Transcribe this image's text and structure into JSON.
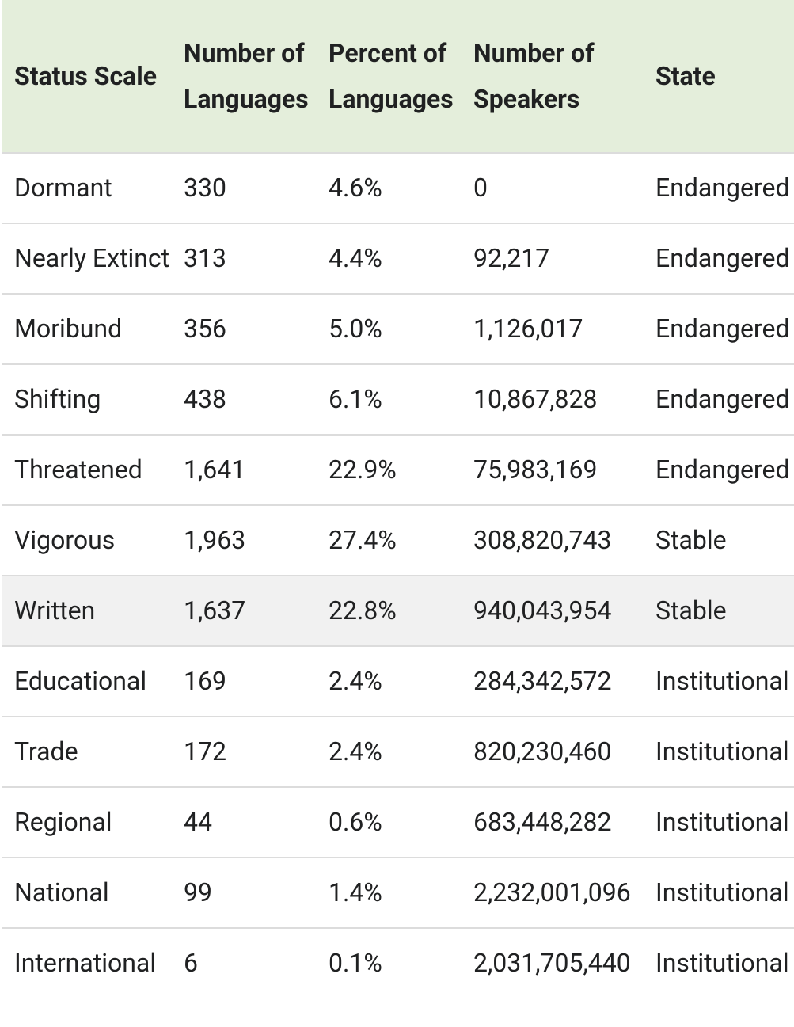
{
  "table": {
    "header": [
      "Status Scale",
      "Number of Languages",
      "Percent of Languages",
      "Number of Speakers",
      "State"
    ],
    "rows": [
      [
        "Dormant",
        "330",
        "4.6%",
        "0",
        "Endangered"
      ],
      [
        "Nearly Extinct",
        "313",
        "4.4%",
        "92,217",
        "Endangered"
      ],
      [
        "Moribund",
        "356",
        "5.0%",
        "1,126,017",
        "Endangered"
      ],
      [
        "Shifting",
        "438",
        "6.1%",
        "10,867,828",
        "Endangered"
      ],
      [
        "Threatened",
        "1,641",
        "22.9%",
        "75,983,169",
        "Endangered"
      ],
      [
        "Vigorous",
        "1,963",
        "27.4%",
        "308,820,743",
        "Stable"
      ],
      [
        "Written",
        "1,637",
        "22.8%",
        "940,043,954",
        "Stable"
      ],
      [
        "Educational",
        "169",
        "2.4%",
        "284,342,572",
        "Institutional"
      ],
      [
        "Trade",
        "172",
        "2.4%",
        "820,230,460",
        "Institutional"
      ],
      [
        "Regional",
        "44",
        "0.6%",
        "683,448,282",
        "Institutional"
      ],
      [
        "National",
        "99",
        "1.4%",
        "2,232,001,096",
        "Institutional"
      ],
      [
        "International",
        "6",
        "0.1%",
        "2,031,705,440",
        "Institutional"
      ]
    ]
  }
}
